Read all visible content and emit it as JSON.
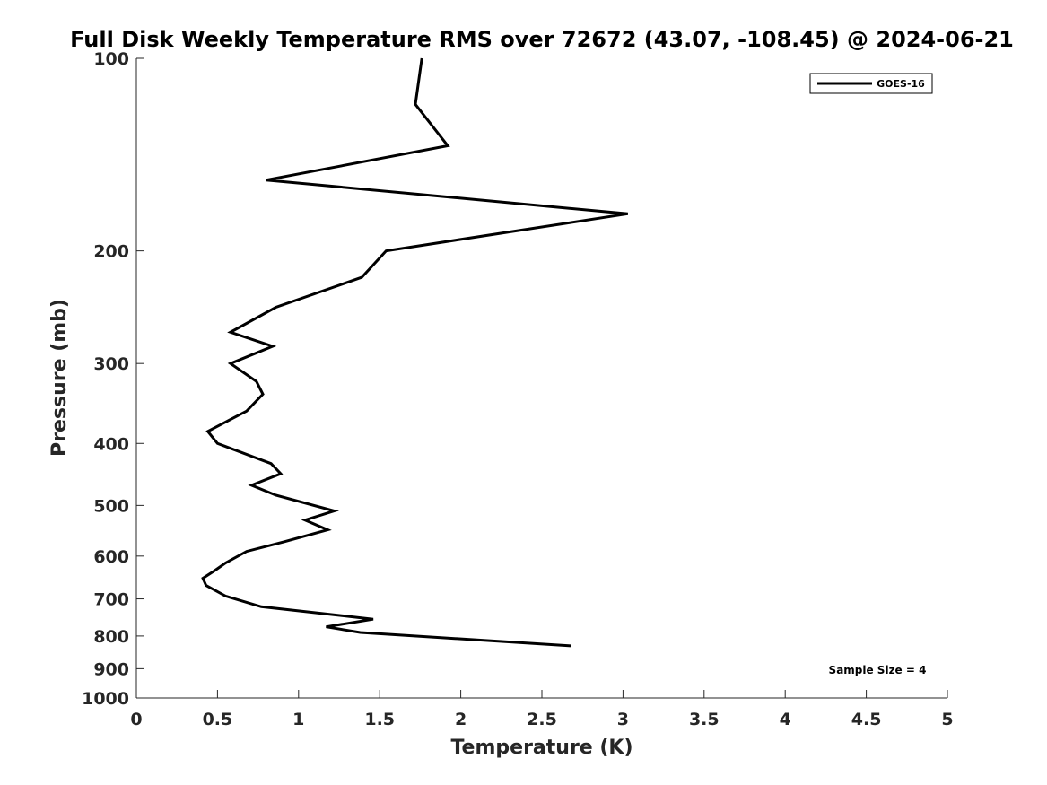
{
  "chart_data": {
    "type": "line",
    "title": "Full Disk Weekly Temperature RMS over 72672 (43.07, -108.45) @ 2024-06-21",
    "xlabel": "Temperature (K)",
    "ylabel": "Pressure (mb)",
    "xlim": [
      0,
      5
    ],
    "ylim": [
      100,
      1000
    ],
    "y_scale": "log",
    "y_reversed": true,
    "grid": false,
    "legend_position": "top-right",
    "x_ticks": [
      0,
      0.5,
      1,
      1.5,
      2,
      2.5,
      3,
      3.5,
      4,
      4.5,
      5
    ],
    "x_tick_labels": [
      "0",
      "0.5",
      "1",
      "1.5",
      "2",
      "2.5",
      "3",
      "3.5",
      "4",
      "4.5",
      "5"
    ],
    "y_ticks": [
      100,
      200,
      300,
      400,
      500,
      600,
      700,
      800,
      900,
      1000
    ],
    "y_tick_labels": [
      "100",
      "200",
      "300",
      "400",
      "500",
      "600",
      "700",
      "800",
      "900",
      "1000"
    ],
    "series": [
      {
        "name": "GOES-16",
        "color": "#000000",
        "x": [
          1.76,
          1.72,
          1.92,
          0.8,
          3.03,
          1.54,
          1.39,
          0.86,
          0.58,
          0.84,
          0.58,
          0.74,
          0.78,
          0.68,
          0.44,
          0.5,
          0.83,
          0.89,
          0.71,
          0.86,
          1.22,
          1.04,
          1.18,
          0.91,
          0.68,
          0.55,
          0.48,
          0.41,
          0.43,
          0.55,
          0.77,
          1.46,
          1.17,
          1.38,
          2.68
        ],
        "y": [
          100,
          118,
          137,
          155,
          175,
          200,
          220,
          245,
          268,
          282,
          300,
          320,
          335,
          356,
          383,
          400,
          430,
          446,
          465,
          482,
          510,
          527,
          546,
          570,
          590,
          615,
          633,
          650,
          667,
          693,
          720,
          753,
          774,
          790,
          829
        ]
      }
    ],
    "annotations": [
      {
        "text": "Sample Size = 4"
      }
    ]
  }
}
